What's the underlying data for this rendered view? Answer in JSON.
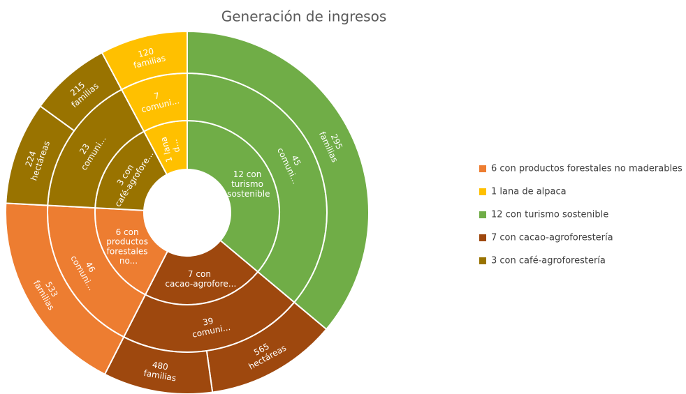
{
  "chart_data": {
    "type": "sunburst",
    "title": "Generación de ingresos",
    "legend": "right",
    "series": [
      {
        "name": "6 con productos forestales no maderables",
        "color": "#ed7d31",
        "label": "6 con productos forestales no...",
        "children": [
          {
            "label": "46 comuni...",
            "children": [
              {
                "label": "533 familias",
                "size": 66
              }
            ]
          }
        ]
      },
      {
        "name": "1  lana de alpaca",
        "color": "#ffc000",
        "label": "1  lana d...",
        "children": [
          {
            "label": "7 comuni...",
            "children": [
              {
                "label": "120 familias",
                "size": 28
              }
            ]
          }
        ]
      },
      {
        "name": "12 con turismo sostenible",
        "color": "#70ad47",
        "label": "12 con turismo sostenible",
        "children": [
          {
            "label": "45 comuni...",
            "children": [
              {
                "label": "295 familias",
                "size": 130
              }
            ]
          }
        ]
      },
      {
        "name": "7 con cacao-agroforestería",
        "color": "#9e480e",
        "label": "7 con cacao-agrofore...",
        "children": [
          {
            "label": "39 comuni...",
            "children": [
              {
                "label": "565 hectáreas",
                "size": 42
              },
              {
                "label": "480 familias",
                "size": 35
              }
            ]
          }
        ]
      },
      {
        "name": "3 con café-agroforestería",
        "color": "#997300",
        "label": "3 con café-agrofore...",
        "children": [
          {
            "label": "23 comuni...",
            "children": [
              {
                "label": "224 hectáreas",
                "size": 33
              },
              {
                "label": "215 familias",
                "size": 26
              }
            ]
          }
        ]
      }
    ]
  }
}
